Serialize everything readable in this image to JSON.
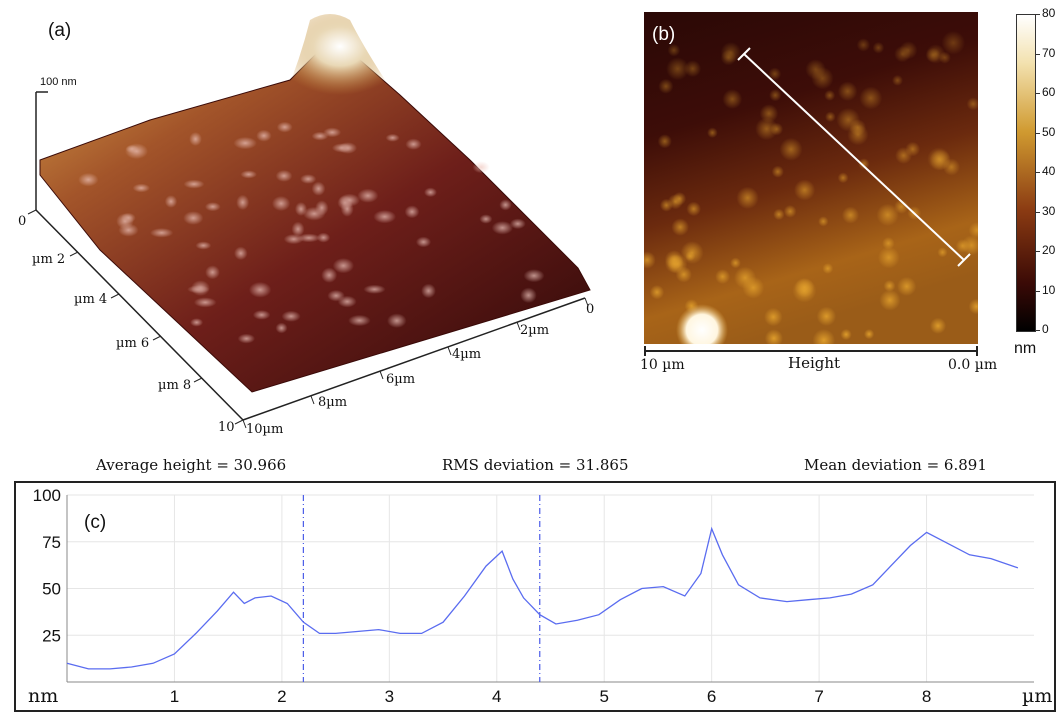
{
  "panel_a": {
    "label": "(a)",
    "z_scale_label": "100 nm",
    "left_axis_ticks": [
      "0",
      "µm 2",
      "µm 4",
      "µm 6",
      "µm 8",
      "10"
    ],
    "right_axis_ticks": [
      "0",
      "2µm",
      "4µm",
      "6µm",
      "8µm",
      "10µm"
    ]
  },
  "panel_b": {
    "label": "(b)",
    "x_left": "10 µm",
    "x_right": "0.0 µm",
    "x_title": "Height",
    "colorbar_ticks": [
      "80",
      "70",
      "60",
      "50",
      "40",
      "30",
      "20",
      "10",
      "0"
    ],
    "colorbar_unit": "nm",
    "colors": {
      "low": "#000000",
      "mid": "#7a2a10",
      "high_mid": "#d09a30",
      "high": "#ffffff"
    }
  },
  "stats": {
    "average": "Average height = 30.966",
    "rms": "RMS deviation = 31.865",
    "mean": "Mean deviation = 6.891"
  },
  "chart_data": {
    "type": "line",
    "panel_label": "(c)",
    "xlabel": "µm",
    "ylabel": "nm",
    "xlim": [
      0,
      9.0
    ],
    "ylim": [
      0,
      100
    ],
    "x_ticks": [
      "1",
      "2",
      "3",
      "4",
      "5",
      "6",
      "7",
      "8"
    ],
    "y_ticks": [
      "25",
      "50",
      "75",
      "100"
    ],
    "grid": true,
    "line_color": "#5a6cf0",
    "markers": [
      2.2,
      4.4
    ],
    "series": [
      {
        "x": [
          0,
          0.2,
          0.4,
          0.6,
          0.8,
          1.0,
          1.2,
          1.4,
          1.55,
          1.65,
          1.75,
          1.9,
          2.05,
          2.2,
          2.35,
          2.5,
          2.7,
          2.9,
          3.1,
          3.3,
          3.5,
          3.7,
          3.9,
          4.05,
          4.15,
          4.25,
          4.4,
          4.55,
          4.75,
          4.95,
          5.15,
          5.35,
          5.55,
          5.75,
          5.9,
          6.0,
          6.1,
          6.25,
          6.45,
          6.7,
          6.9,
          7.1,
          7.3,
          7.5,
          7.7,
          7.85,
          8.0,
          8.2,
          8.4,
          8.6,
          8.85
        ],
        "y": [
          10,
          7,
          7,
          8,
          10,
          15,
          26,
          38,
          48,
          42,
          45,
          46,
          42,
          32,
          26,
          26,
          27,
          28,
          26,
          26,
          32,
          46,
          62,
          70,
          55,
          45,
          36,
          31,
          33,
          36,
          44,
          50,
          51,
          46,
          58,
          82,
          68,
          52,
          45,
          43,
          44,
          45,
          47,
          52,
          64,
          73,
          80,
          74,
          68,
          66,
          61
        ]
      }
    ]
  }
}
